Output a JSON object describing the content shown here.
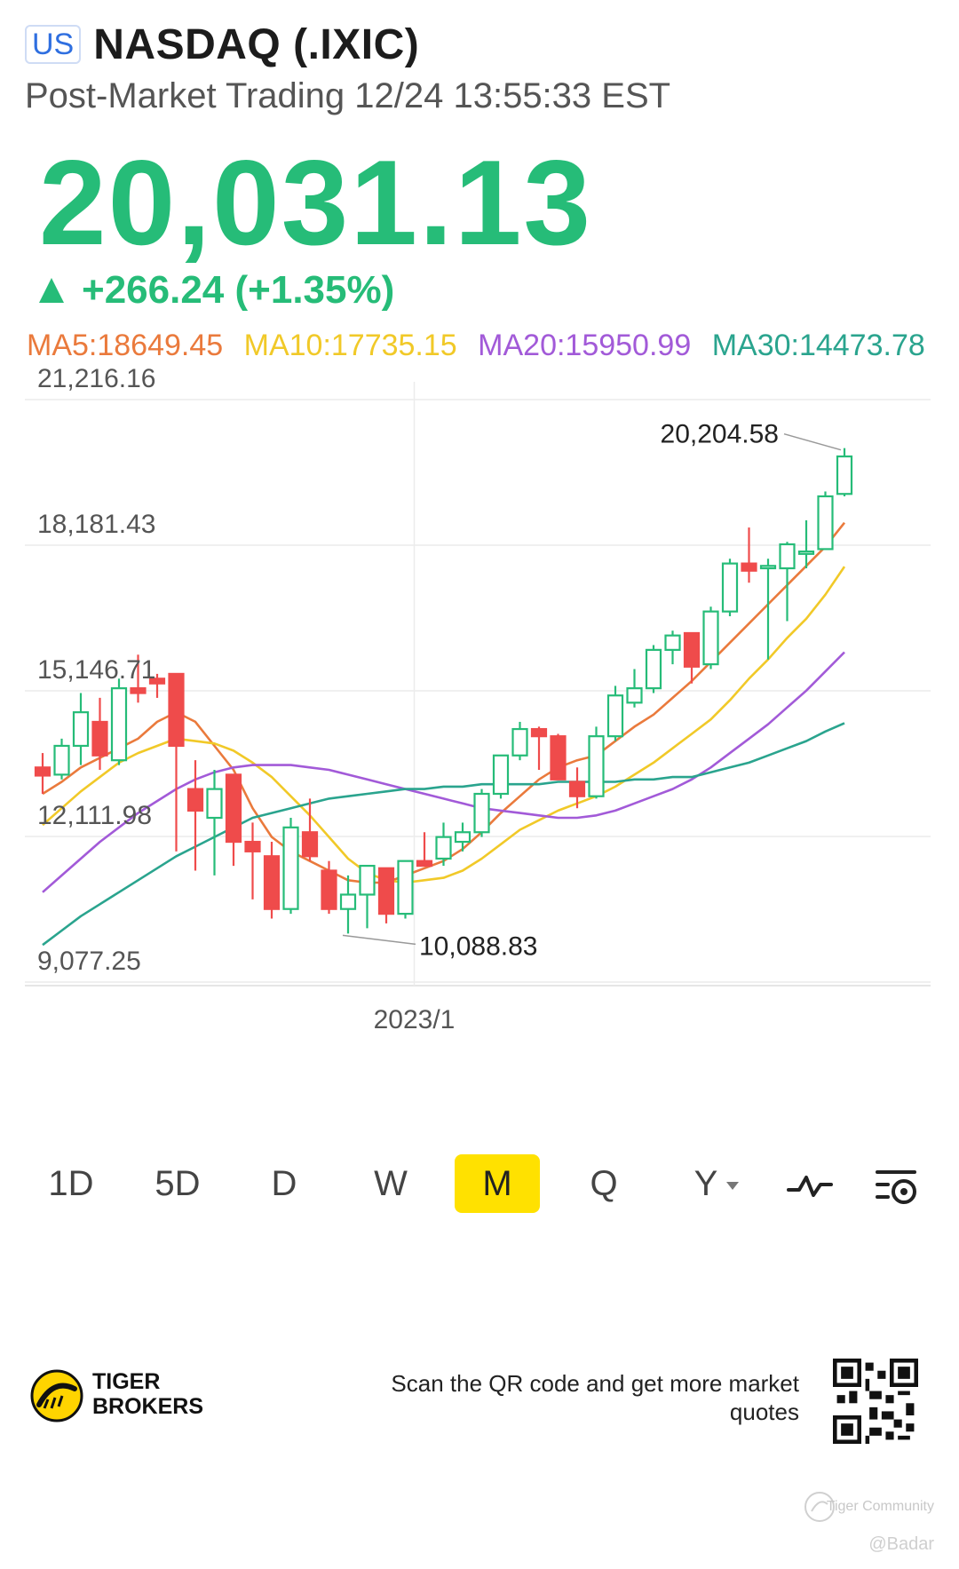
{
  "header": {
    "market_badge": "US",
    "ticker": "NASDAQ (.IXIC)",
    "subtitle": "Post-Market Trading 12/24 13:55:33 EST"
  },
  "quote": {
    "price": "20,031.13",
    "change": "+266.24 (+1.35%)",
    "color": "#26bc78"
  },
  "ma_legend": [
    {
      "label": "MA5:18649.45",
      "color": "#ea7a3c"
    },
    {
      "label": "MA10:17735.15",
      "color": "#f1c928"
    },
    {
      "label": "MA20:15950.99",
      "color": "#a25ad8"
    },
    {
      "label": "MA30:14473.78",
      "color": "#2aa48e"
    }
  ],
  "chart_data": {
    "type": "candlestick",
    "period": "monthly",
    "y_ticks": [
      "21,216.16",
      "18,181.43",
      "15,146.71",
      "12,111.98",
      "9,077.25"
    ],
    "y_tick_values": [
      21216.16,
      18181.43,
      15146.71,
      12111.98,
      9077.25
    ],
    "ylim": [
      9077.25,
      21216.16
    ],
    "x_tick_label": "2023/1",
    "x_tick_index": 19,
    "high_annotation": {
      "label": "20,204.58",
      "index": 42,
      "value": 20204.58
    },
    "low_annotation": {
      "label": "10,088.83",
      "index": 16,
      "value": 10088.83
    },
    "up_color": "#26bc78",
    "down_color": "#ef4b4b",
    "candles": [
      {
        "o": 13550,
        "h": 13850,
        "l": 13000,
        "c": 13380
      },
      {
        "o": 13400,
        "h": 14150,
        "l": 13300,
        "c": 14000
      },
      {
        "o": 14000,
        "h": 15100,
        "l": 13600,
        "c": 14700
      },
      {
        "o": 14500,
        "h": 15000,
        "l": 13500,
        "c": 13800
      },
      {
        "o": 13700,
        "h": 15400,
        "l": 13600,
        "c": 15200
      },
      {
        "o": 15200,
        "h": 15900,
        "l": 14900,
        "c": 15100
      },
      {
        "o": 15400,
        "h": 15500,
        "l": 15000,
        "c": 15300
      },
      {
        "o": 15500,
        "h": 15450,
        "l": 11800,
        "c": 14000
      },
      {
        "o": 13100,
        "h": 13700,
        "l": 11400,
        "c": 12650
      },
      {
        "o": 12500,
        "h": 13500,
        "l": 11300,
        "c": 13100
      },
      {
        "o": 13400,
        "h": 13300,
        "l": 11500,
        "c": 12000
      },
      {
        "o": 12000,
        "h": 12400,
        "l": 10800,
        "c": 11800
      },
      {
        "o": 11700,
        "h": 12000,
        "l": 10400,
        "c": 10600
      },
      {
        "o": 10600,
        "h": 12500,
        "l": 10500,
        "c": 12300
      },
      {
        "o": 12200,
        "h": 12900,
        "l": 11600,
        "c": 11700
      },
      {
        "o": 11400,
        "h": 11600,
        "l": 10500,
        "c": 10600
      },
      {
        "o": 10600,
        "h": 11300,
        "l": 10088.83,
        "c": 10900
      },
      {
        "o": 10900,
        "h": 11500,
        "l": 10200,
        "c": 11500
      },
      {
        "o": 11450,
        "h": 11450,
        "l": 10300,
        "c": 10500
      },
      {
        "o": 10500,
        "h": 11600,
        "l": 10400,
        "c": 11600
      },
      {
        "o": 11600,
        "h": 12200,
        "l": 11500,
        "c": 11500
      },
      {
        "o": 11650,
        "h": 12400,
        "l": 11500,
        "c": 12100
      },
      {
        "o": 12000,
        "h": 12400,
        "l": 11800,
        "c": 12200
      },
      {
        "o": 12200,
        "h": 13100,
        "l": 12100,
        "c": 13000
      },
      {
        "o": 13000,
        "h": 13800,
        "l": 12900,
        "c": 13800
      },
      {
        "o": 13800,
        "h": 14500,
        "l": 13700,
        "c": 14350
      },
      {
        "o": 14350,
        "h": 14400,
        "l": 13500,
        "c": 14200
      },
      {
        "o": 14200,
        "h": 14250,
        "l": 13300,
        "c": 13300
      },
      {
        "o": 13250,
        "h": 13550,
        "l": 12700,
        "c": 12950
      },
      {
        "o": 12950,
        "h": 14400,
        "l": 12900,
        "c": 14200
      },
      {
        "o": 14200,
        "h": 15250,
        "l": 14100,
        "c": 15050
      },
      {
        "o": 14900,
        "h": 15600,
        "l": 14800,
        "c": 15200
      },
      {
        "o": 15200,
        "h": 16100,
        "l": 15100,
        "c": 16000
      },
      {
        "o": 16000,
        "h": 16400,
        "l": 15700,
        "c": 16300
      },
      {
        "o": 16350,
        "h": 16350,
        "l": 15300,
        "c": 15650
      },
      {
        "o": 15700,
        "h": 16900,
        "l": 15600,
        "c": 16800
      },
      {
        "o": 16800,
        "h": 17900,
        "l": 16700,
        "c": 17800
      },
      {
        "o": 17800,
        "h": 18550,
        "l": 17400,
        "c": 17650
      },
      {
        "o": 17700,
        "h": 17900,
        "l": 15800,
        "c": 17750
      },
      {
        "o": 17700,
        "h": 18250,
        "l": 16600,
        "c": 18200
      },
      {
        "o": 18000,
        "h": 18700,
        "l": 17700,
        "c": 18050
      },
      {
        "o": 18100,
        "h": 19300,
        "l": 18100,
        "c": 19200
      },
      {
        "o": 19250,
        "h": 20204.58,
        "l": 19200,
        "c": 20031.13
      }
    ],
    "series": [
      {
        "name": "MA5",
        "color": "#ea7a3c",
        "values": [
          13000,
          13250,
          13550,
          13750,
          13950,
          14150,
          14500,
          14700,
          14500,
          14000,
          13500,
          12700,
          12100,
          11800,
          11600,
          11400,
          11200,
          11150,
          11150,
          11300,
          11450,
          11600,
          11850,
          12200,
          12600,
          12950,
          13300,
          13550,
          13700,
          13800,
          14100,
          14400,
          14650,
          15000,
          15350,
          15750,
          16150,
          16550,
          16950,
          17350,
          17750,
          18150,
          18649.45
        ]
      },
      {
        "name": "MA10",
        "color": "#f1c928",
        "values": [
          12350,
          12700,
          13050,
          13350,
          13650,
          13850,
          14000,
          14150,
          14100,
          14050,
          13900,
          13650,
          13350,
          12950,
          12550,
          12100,
          11650,
          11350,
          11200,
          11150,
          11200,
          11250,
          11400,
          11650,
          11950,
          12250,
          12450,
          12650,
          12800,
          12950,
          13150,
          13400,
          13650,
          13950,
          14250,
          14550,
          14950,
          15400,
          15800,
          16250,
          16650,
          17150,
          17735.15
        ]
      },
      {
        "name": "MA20",
        "color": "#a25ad8",
        "values": [
          10950,
          11300,
          11650,
          12000,
          12300,
          12600,
          12850,
          13100,
          13300,
          13450,
          13550,
          13600,
          13600,
          13600,
          13550,
          13500,
          13400,
          13300,
          13200,
          13100,
          13000,
          12900,
          12800,
          12700,
          12650,
          12600,
          12550,
          12500,
          12500,
          12550,
          12650,
          12800,
          12950,
          13100,
          13300,
          13550,
          13850,
          14150,
          14450,
          14800,
          15150,
          15550,
          15950.99
        ]
      },
      {
        "name": "MA30",
        "color": "#2aa48e",
        "values": [
          9850,
          10150,
          10450,
          10700,
          10950,
          11200,
          11450,
          11700,
          11900,
          12100,
          12300,
          12500,
          12600,
          12700,
          12800,
          12900,
          12950,
          13000,
          13050,
          13100,
          13100,
          13150,
          13150,
          13200,
          13200,
          13200,
          13200,
          13250,
          13250,
          13250,
          13250,
          13300,
          13300,
          13350,
          13350,
          13450,
          13550,
          13650,
          13800,
          13950,
          14100,
          14300,
          14473.78
        ]
      }
    ]
  },
  "toolbar": {
    "periods": [
      "1D",
      "5D",
      "D",
      "W",
      "M",
      "Q",
      "Y"
    ],
    "active": "M"
  },
  "footer": {
    "brand_line1": "TIGER",
    "brand_line2": "BROKERS",
    "qr_text": "Scan the QR code and get more market quotes"
  },
  "watermark": {
    "community": "Tiger Community",
    "user": "@Badar"
  }
}
